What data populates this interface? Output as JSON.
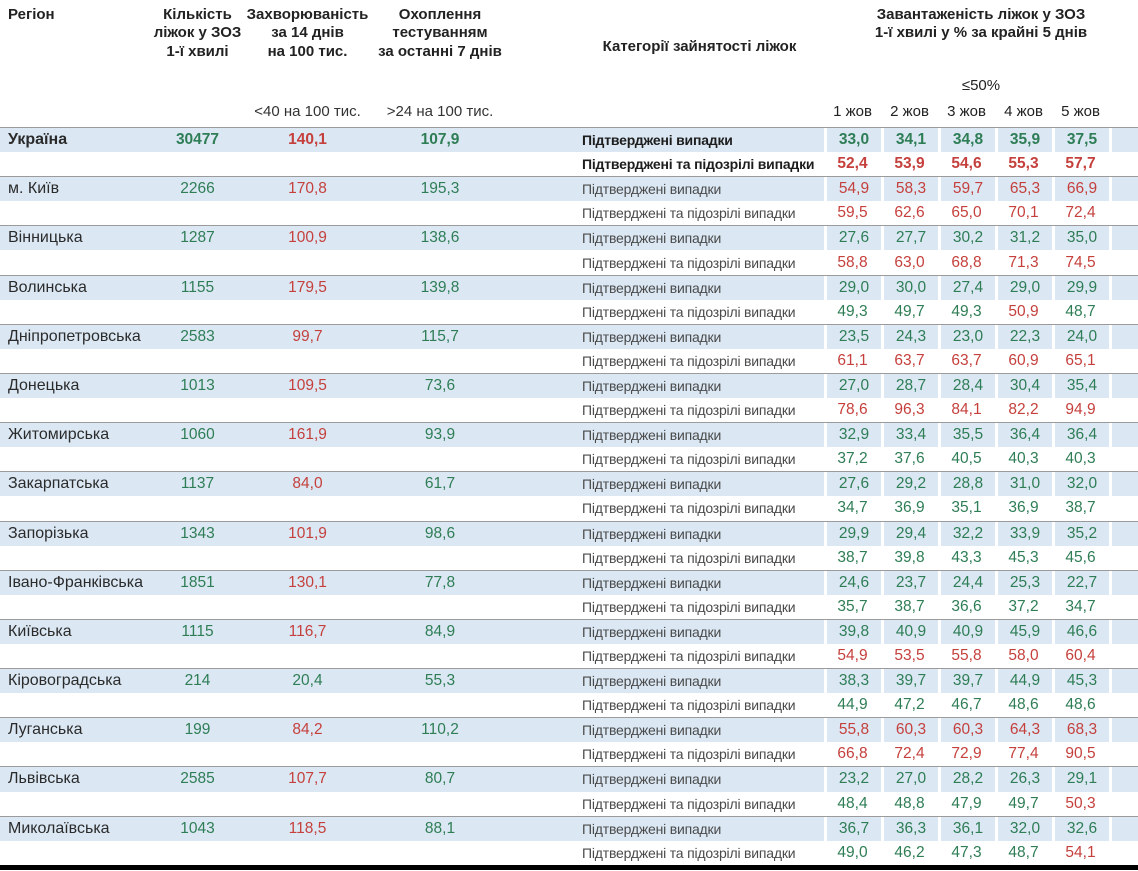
{
  "palette": {
    "green": "#2e7d55",
    "red": "#c5403c",
    "row_blue": "#dbe8f4",
    "separator": "#9b9b9b",
    "bottom_bar": "#000000"
  },
  "header": {
    "region": "Регіон",
    "beds_lines": [
      "Кількість",
      "ліжок у ЗОЗ",
      "1-ї хвилі"
    ],
    "incidence_lines": [
      "Захворюваність",
      "за 14 днів",
      "на 100 тис."
    ],
    "incidence_note": "<40 на 100 тис.",
    "testing_lines": [
      "Охоплення",
      "тестуванням",
      "за останні 7 днів"
    ],
    "testing_note": ">24 на 100 тис.",
    "categories": "Категорії зайнятості ліжок",
    "occupancy_lines": [
      "Завантаженість ліжок у ЗОЗ",
      "1-ї хвилі у % за крайні 5 днів"
    ],
    "occupancy_target": "≤50%"
  },
  "labels": {
    "confirmed": "Підтверджені випадки",
    "confirmed_suspected": "Підтверджені та підозрілі випадки"
  },
  "chart_data": {
    "type": "table",
    "title": "Завантаженість ліжок у ЗОЗ 1-ї хвилі у % за крайні 5 днів",
    "dates": [
      "1 жов",
      "2 жов",
      "3 жов",
      "4 жов",
      "5 жов"
    ],
    "thresholds": {
      "incidence_red_at_or_above": 40,
      "testing_target_above": 24,
      "occupancy_red_above": 50,
      "occupancy_target_label": "≤50%"
    },
    "rows": [
      {
        "region": "Україна",
        "bold": true,
        "beds": "30477",
        "incidence": "140,1",
        "testing": "107,9",
        "confirmed": [
          "33,0",
          "34,1",
          "34,8",
          "35,9",
          "37,5"
        ],
        "confirmed_suspected": [
          "52,4",
          "53,9",
          "54,6",
          "55,3",
          "57,7"
        ]
      },
      {
        "region": "м. Київ",
        "beds": "2266",
        "incidence": "170,8",
        "testing": "195,3",
        "confirmed": [
          "54,9",
          "58,3",
          "59,7",
          "65,3",
          "66,9"
        ],
        "confirmed_suspected": [
          "59,5",
          "62,6",
          "65,0",
          "70,1",
          "72,4"
        ]
      },
      {
        "region": "Вінницька",
        "beds": "1287",
        "incidence": "100,9",
        "testing": "138,6",
        "confirmed": [
          "27,6",
          "27,7",
          "30,2",
          "31,2",
          "35,0"
        ],
        "confirmed_suspected": [
          "58,8",
          "63,0",
          "68,8",
          "71,3",
          "74,5"
        ]
      },
      {
        "region": "Волинська",
        "beds": "1155",
        "incidence": "179,5",
        "testing": "139,8",
        "confirmed": [
          "29,0",
          "30,0",
          "27,4",
          "29,0",
          "29,9"
        ],
        "confirmed_suspected": [
          "49,3",
          "49,7",
          "49,3",
          "50,9",
          "48,7"
        ]
      },
      {
        "region": "Дніпропетровська",
        "beds": "2583",
        "incidence": "99,7",
        "testing": "115,7",
        "confirmed": [
          "23,5",
          "24,3",
          "23,0",
          "22,3",
          "24,0"
        ],
        "confirmed_suspected": [
          "61,1",
          "63,7",
          "63,7",
          "60,9",
          "65,1"
        ]
      },
      {
        "region": "Донецька",
        "beds": "1013",
        "incidence": "109,5",
        "testing": "73,6",
        "confirmed": [
          "27,0",
          "28,7",
          "28,4",
          "30,4",
          "35,4"
        ],
        "confirmed_suspected": [
          "78,6",
          "96,3",
          "84,1",
          "82,2",
          "94,9"
        ]
      },
      {
        "region": "Житомирська",
        "beds": "1060",
        "incidence": "161,9",
        "testing": "93,9",
        "confirmed": [
          "32,9",
          "33,4",
          "35,5",
          "36,4",
          "36,4"
        ],
        "confirmed_suspected": [
          "37,2",
          "37,6",
          "40,5",
          "40,3",
          "40,3"
        ]
      },
      {
        "region": "Закарпатська",
        "beds": "1137",
        "incidence": "84,0",
        "testing": "61,7",
        "confirmed": [
          "27,6",
          "29,2",
          "28,8",
          "31,0",
          "32,0"
        ],
        "confirmed_suspected": [
          "34,7",
          "36,9",
          "35,1",
          "36,9",
          "38,7"
        ]
      },
      {
        "region": "Запорізька",
        "beds": "1343",
        "incidence": "101,9",
        "testing": "98,6",
        "confirmed": [
          "29,9",
          "29,4",
          "32,2",
          "33,9",
          "35,2"
        ],
        "confirmed_suspected": [
          "38,7",
          "39,8",
          "43,3",
          "45,3",
          "45,6"
        ]
      },
      {
        "region": "Івано-Франківська",
        "beds": "1851",
        "incidence": "130,1",
        "testing": "77,8",
        "confirmed": [
          "24,6",
          "23,7",
          "24,4",
          "25,3",
          "22,7"
        ],
        "confirmed_suspected": [
          "35,7",
          "38,7",
          "36,6",
          "37,2",
          "34,7"
        ]
      },
      {
        "region": "Київська",
        "beds": "1115",
        "incidence": "116,7",
        "testing": "84,9",
        "confirmed": [
          "39,8",
          "40,9",
          "40,9",
          "45,9",
          "46,6"
        ],
        "confirmed_suspected": [
          "54,9",
          "53,5",
          "55,8",
          "58,0",
          "60,4"
        ]
      },
      {
        "region": "Кіровоградська",
        "beds": "214",
        "incidence": "20,4",
        "testing": "55,3",
        "confirmed": [
          "38,3",
          "39,7",
          "39,7",
          "44,9",
          "45,3"
        ],
        "confirmed_suspected": [
          "44,9",
          "47,2",
          "46,7",
          "48,6",
          "48,6"
        ]
      },
      {
        "region": "Луганська",
        "beds": "199",
        "incidence": "84,2",
        "testing": "110,2",
        "confirmed": [
          "55,8",
          "60,3",
          "60,3",
          "64,3",
          "68,3"
        ],
        "confirmed_suspected": [
          "66,8",
          "72,4",
          "72,9",
          "77,4",
          "90,5"
        ]
      },
      {
        "region": "Львівська",
        "beds": "2585",
        "incidence": "107,7",
        "testing": "80,7",
        "confirmed": [
          "23,2",
          "27,0",
          "28,2",
          "26,3",
          "29,1"
        ],
        "confirmed_suspected": [
          "48,4",
          "48,8",
          "47,9",
          "49,7",
          "50,3"
        ]
      },
      {
        "region": "Миколаївська",
        "beds": "1043",
        "incidence": "118,5",
        "testing": "88,1",
        "confirmed": [
          "36,7",
          "36,3",
          "36,1",
          "32,0",
          "32,6"
        ],
        "confirmed_suspected": [
          "49,0",
          "46,2",
          "47,3",
          "48,7",
          "54,1"
        ]
      }
    ]
  }
}
